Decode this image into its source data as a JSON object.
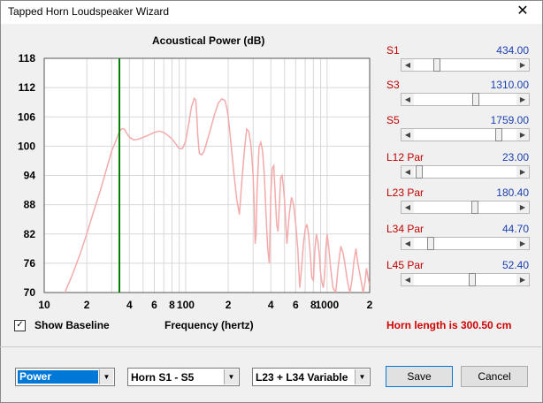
{
  "window": {
    "title": "Tapped Horn Loudspeaker Wizard",
    "close_glyph": "✕"
  },
  "chart_data": {
    "type": "line",
    "title": "Acoustical Power (dB)",
    "xlabel": "Frequency (hertz)",
    "ylabel": "",
    "x_scale": "log",
    "xlim": [
      10,
      2000
    ],
    "ylim": [
      70,
      118
    ],
    "y_ticks": [
      70,
      76,
      82,
      88,
      94,
      100,
      106,
      112,
      118
    ],
    "x_tick_labels": [
      {
        "v": 10,
        "label": "10"
      },
      {
        "v": 20,
        "label": "2"
      },
      {
        "v": 40,
        "label": "4"
      },
      {
        "v": 60,
        "label": "6"
      },
      {
        "v": 80,
        "label": "8"
      },
      {
        "v": 100,
        "label": "100"
      },
      {
        "v": 200,
        "label": "2"
      },
      {
        "v": 400,
        "label": "4"
      },
      {
        "v": 600,
        "label": "6"
      },
      {
        "v": 800,
        "label": "8"
      },
      {
        "v": 1000,
        "label": "1000"
      },
      {
        "v": 2000,
        "label": "2"
      }
    ],
    "grid": true,
    "marker_frequency": 34,
    "series": [
      {
        "color": "#f4aaaa",
        "x": [
          10,
          14,
          16,
          18,
          20,
          22,
          25,
          28,
          30,
          32,
          34,
          35,
          36,
          37,
          38,
          40,
          43,
          46,
          50,
          55,
          60,
          65,
          70,
          75,
          80,
          85,
          90,
          95,
          100,
          105,
          110,
          115,
          118,
          120,
          122,
          125,
          130,
          135,
          140,
          145,
          150,
          160,
          170,
          180,
          190,
          195,
          200,
          210,
          220,
          230,
          240,
          250,
          260,
          270,
          280,
          290,
          300,
          305,
          310,
          315,
          320,
          330,
          340,
          350,
          360,
          370,
          380,
          390,
          400,
          410,
          420,
          430,
          440,
          450,
          460,
          470,
          480,
          490,
          500,
          520,
          540,
          560,
          580,
          600,
          620,
          640,
          660,
          680,
          700,
          720,
          740,
          760,
          780,
          800,
          820,
          840,
          860,
          880,
          900,
          920,
          940,
          960,
          980,
          1000,
          1030,
          1060,
          1100,
          1150,
          1200,
          1250,
          1300,
          1350,
          1400,
          1450,
          1500,
          1550,
          1600,
          1650,
          1700,
          1750,
          1800,
          1850,
          1900,
          1950,
          2000
        ],
        "y": [
          60,
          70,
          74,
          78,
          82,
          86,
          91,
          96,
          99,
          101,
          103,
          103.5,
          103.6,
          103.4,
          102.8,
          101.8,
          101.3,
          101.4,
          101.8,
          102.3,
          102.8,
          103.1,
          102.8,
          102.2,
          101.5,
          100.5,
          99.5,
          99.5,
          101,
          104.5,
          108,
          109.8,
          109.4,
          106,
          102,
          98.5,
          98.2,
          99,
          100.5,
          102,
          103.5,
          106.5,
          108.8,
          109.7,
          109.3,
          108,
          106,
          100,
          94,
          89,
          86,
          93,
          99,
          103.5,
          103,
          100,
          94,
          88,
          80,
          82,
          91,
          99.8,
          100.8,
          99,
          94,
          86,
          79,
          76,
          90,
          95.5,
          96,
          90,
          84,
          82.5,
          88,
          93.5,
          94,
          92,
          89,
          80,
          86,
          89.5,
          88,
          84,
          79,
          71,
          75,
          80,
          83,
          84,
          82,
          78,
          73,
          72.5,
          79,
          82,
          80.5,
          78,
          74,
          72,
          71,
          73.5,
          79,
          82,
          79,
          75,
          71,
          70,
          75.5,
          79.5,
          78,
          75,
          72,
          70,
          72.5,
          76.5,
          79,
          76,
          74,
          72,
          70,
          72,
          75,
          73,
          71.5
        ]
      }
    ]
  },
  "controls": [
    {
      "name": "S1",
      "par": "",
      "value": "434.00",
      "fraction": 0.2
    },
    {
      "name": "S3",
      "par": "",
      "value": "1310.00",
      "fraction": 0.61
    },
    {
      "name": "S5",
      "par": "",
      "value": "1759.00",
      "fraction": 0.85
    },
    {
      "name": "L12",
      "par": "Par",
      "value": "23.00",
      "fraction": 0.02
    },
    {
      "name": "L23",
      "par": "Par",
      "value": "180.40",
      "fraction": 0.6
    },
    {
      "name": "L34",
      "par": "Par",
      "value": "44.70",
      "fraction": 0.14
    },
    {
      "name": "L45",
      "par": "Par",
      "value": "52.40",
      "fraction": 0.57
    }
  ],
  "show_baseline": {
    "label": "Show Baseline",
    "checked": true,
    "check_glyph": "✓"
  },
  "horn_length": "Horn length is 300.50 cm",
  "bottom": {
    "display_select": "Power",
    "horn_select": "Horn S1 - S5",
    "variable_select": "L23 + L34 Variable",
    "save_label": "Save",
    "cancel_label": "Cancel"
  }
}
